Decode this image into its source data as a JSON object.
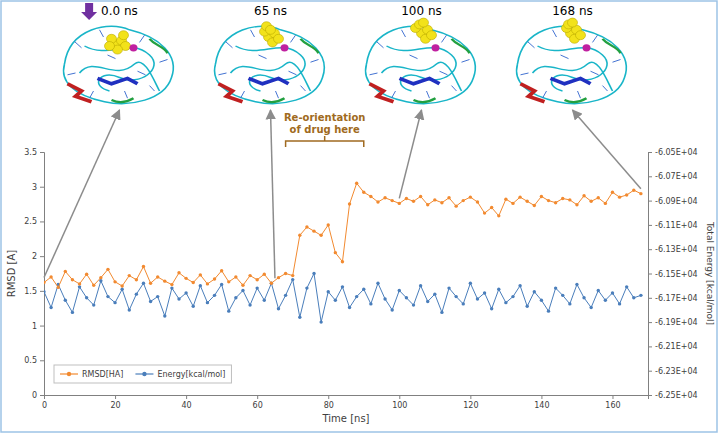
{
  "chart_data": {
    "type": "line",
    "x_label": "Time [ns]",
    "y_label": "RMSD [A]",
    "y2_label": "Total Energy [kcal/mol]",
    "x": [
      0,
      2,
      4,
      6,
      8,
      10,
      12,
      14,
      16,
      18,
      20,
      22,
      24,
      26,
      28,
      30,
      32,
      34,
      36,
      38,
      40,
      42,
      44,
      46,
      48,
      50,
      52,
      54,
      56,
      58,
      60,
      62,
      64,
      66,
      68,
      70,
      72,
      74,
      76,
      78,
      80,
      82,
      84,
      86,
      88,
      90,
      92,
      94,
      96,
      98,
      100,
      102,
      104,
      106,
      108,
      110,
      112,
      114,
      116,
      118,
      120,
      122,
      124,
      126,
      128,
      130,
      132,
      134,
      136,
      138,
      140,
      142,
      144,
      146,
      148,
      150,
      152,
      154,
      156,
      158,
      160,
      162,
      164,
      166,
      168
    ],
    "series": [
      {
        "name": "RMSD[HA]",
        "color": "#f28a30",
        "marker": "circle",
        "line_style": "solid",
        "values": [
          1.62,
          1.7,
          1.55,
          1.78,
          1.66,
          1.6,
          1.74,
          1.58,
          1.69,
          1.81,
          1.63,
          1.57,
          1.72,
          1.66,
          1.85,
          1.61,
          1.7,
          1.64,
          1.59,
          1.76,
          1.68,
          1.62,
          1.73,
          1.6,
          1.67,
          1.79,
          1.63,
          1.7,
          1.58,
          1.72,
          1.66,
          1.74,
          1.61,
          1.69,
          1.75,
          1.72,
          2.3,
          2.42,
          2.36,
          2.3,
          2.45,
          2.05,
          1.92,
          2.75,
          3.05,
          2.92,
          2.86,
          2.78,
          2.84,
          2.8,
          2.76,
          2.83,
          2.79,
          2.86,
          2.74,
          2.81,
          2.77,
          2.84,
          2.72,
          2.8,
          2.85,
          2.78,
          2.62,
          2.7,
          2.58,
          2.82,
          2.76,
          2.85,
          2.79,
          2.73,
          2.86,
          2.8,
          2.77,
          2.83,
          2.81,
          2.74,
          2.87,
          2.79,
          2.84,
          2.76,
          2.92,
          2.85,
          2.88,
          2.95,
          2.9
        ]
      },
      {
        "name": "Energy[kcal/mol]",
        "color": "#4a7ebb",
        "marker": "circle",
        "line_style": "solid",
        "axis": "y2",
        "values": [
          -61650,
          -61780,
          -61590,
          -61720,
          -61820,
          -61610,
          -61700,
          -61760,
          -61560,
          -61690,
          -61740,
          -61630,
          -61800,
          -61670,
          -61580,
          -61730,
          -61690,
          -61850,
          -61620,
          -61710,
          -61660,
          -61770,
          -61600,
          -61740,
          -61680,
          -61590,
          -61810,
          -61700,
          -61640,
          -61760,
          -61620,
          -61720,
          -61580,
          -61790,
          -61680,
          -61550,
          -61860,
          -61620,
          -61500,
          -61900,
          -61650,
          -61720,
          -61610,
          -61780,
          -61690,
          -61630,
          -61750,
          -61580,
          -61710,
          -61800,
          -61640,
          -61700,
          -61760,
          -61600,
          -61730,
          -61670,
          -61820,
          -61620,
          -61690,
          -61750,
          -61580,
          -61710,
          -61660,
          -61790,
          -61630,
          -61740,
          -61690,
          -61600,
          -61770,
          -61650,
          -61720,
          -61810,
          -61620,
          -61680,
          -61750,
          -61590,
          -61700,
          -61780,
          -61640,
          -61720,
          -61660,
          -61750,
          -61610,
          -61700,
          -61680
        ]
      }
    ],
    "xlim": [
      0,
      170
    ],
    "xticks": [
      0,
      20,
      40,
      60,
      80,
      100,
      120,
      140,
      160
    ],
    "ylim": [
      0,
      3.5
    ],
    "yticks": [
      0,
      0.5,
      1,
      1.5,
      2,
      2.5,
      3,
      3.5
    ],
    "y2lim": [
      -62500,
      -60500
    ],
    "y2ticks": [
      {
        "value": -60500,
        "label": "-6.05E+04"
      },
      {
        "value": -60700,
        "label": "-6.07E+04"
      },
      {
        "value": -60900,
        "label": "-6.09E+04"
      },
      {
        "value": -61100,
        "label": "-6.11E+04"
      },
      {
        "value": -61300,
        "label": "-6.13E+04"
      },
      {
        "value": -61500,
        "label": "-6.15E+04"
      },
      {
        "value": -61700,
        "label": "-6.17E+04"
      },
      {
        "value": -61900,
        "label": "-6.19E+04"
      },
      {
        "value": -62100,
        "label": "-6.21E+04"
      },
      {
        "value": -62300,
        "label": "-6.23E+04"
      },
      {
        "value": -62500,
        "label": "-6.25E+04"
      }
    ],
    "grid": false,
    "legend": "lower left",
    "annotations": [
      {
        "text": "Re-orientation of drug here",
        "x_range": [
          68,
          90
        ]
      }
    ],
    "snapshots": [
      {
        "label": "0.0 ns",
        "time": 0
      },
      {
        "label": "65 ns",
        "time": 65
      },
      {
        "label": "100 ns",
        "time": 100
      },
      {
        "label": "168 ns",
        "time": 168
      }
    ]
  }
}
